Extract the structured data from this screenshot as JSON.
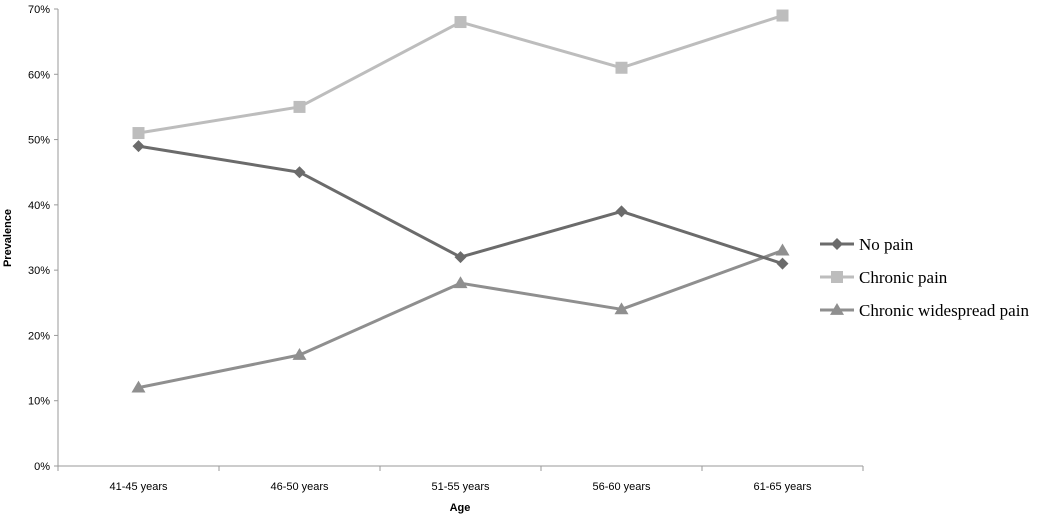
{
  "chart_data": {
    "type": "line",
    "title": "",
    "xlabel": "Age",
    "ylabel": "Prevalence",
    "categories": [
      "41-45 years",
      "46-50 years",
      "51-55 years",
      "56-60 years",
      "61-65 years"
    ],
    "ylim": [
      0,
      70
    ],
    "yticks": [
      0,
      10,
      20,
      30,
      40,
      50,
      60,
      70
    ],
    "ytick_labels": [
      "0%",
      "10%",
      "20%",
      "30%",
      "40%",
      "50%",
      "60%",
      "70%"
    ],
    "grid": false,
    "legend_position": "right",
    "series": [
      {
        "name": "No pain",
        "values": [
          49,
          45,
          32,
          39,
          31
        ],
        "color": "#6b6b6b",
        "marker": "diamond"
      },
      {
        "name": "Chronic pain",
        "values": [
          51,
          55,
          68,
          61,
          69
        ],
        "color": "#bdbdbd",
        "marker": "square"
      },
      {
        "name": "Chronic widespread pain",
        "values": [
          12,
          17,
          28,
          24,
          33
        ],
        "color": "#8f8f8f",
        "marker": "triangle"
      }
    ]
  }
}
